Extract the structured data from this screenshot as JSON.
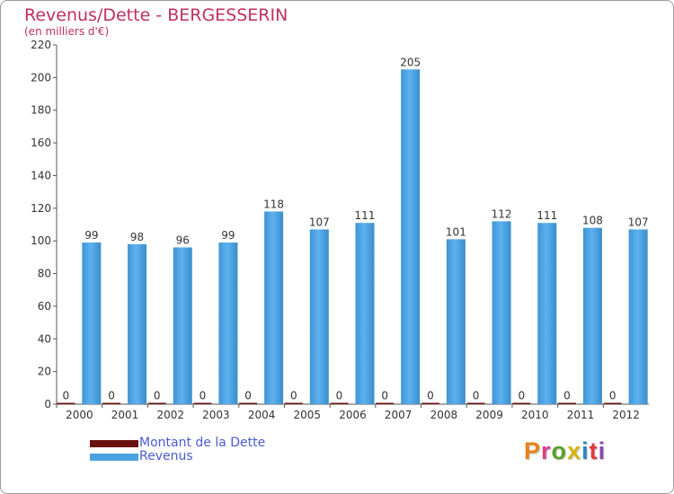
{
  "chart_data": {
    "type": "bar",
    "title": "Revenus/Dette - BERGESSERIN",
    "subtitle": "(en milliers d'€)",
    "categories": [
      "2000",
      "2001",
      "2002",
      "2003",
      "2004",
      "2005",
      "2006",
      "2007",
      "2008",
      "2009",
      "2010",
      "2011",
      "2012"
    ],
    "series": [
      {
        "name": "Montant de la Dette",
        "color": "#6b0f0f",
        "values": [
          0,
          0,
          0,
          0,
          0,
          0,
          0,
          0,
          0,
          0,
          0,
          0,
          0
        ]
      },
      {
        "name": "Revenus",
        "color": "#4aa3e0",
        "values": [
          99,
          98,
          96,
          99,
          118,
          107,
          111,
          205,
          101,
          112,
          111,
          108,
          107
        ]
      }
    ],
    "ylim": [
      0,
      220
    ],
    "yticks": [
      0,
      20,
      40,
      60,
      80,
      100,
      120,
      140,
      160,
      180,
      200,
      220
    ],
    "grid": false,
    "legend_placement": "bottom-left"
  },
  "logo": {
    "text": "Proxiti",
    "colors": [
      "#e8821c",
      "#e03a8c",
      "#5aa02c",
      "#d6b514",
      "#2a86c9",
      "#e03a3a",
      "#8a49b5"
    ]
  }
}
